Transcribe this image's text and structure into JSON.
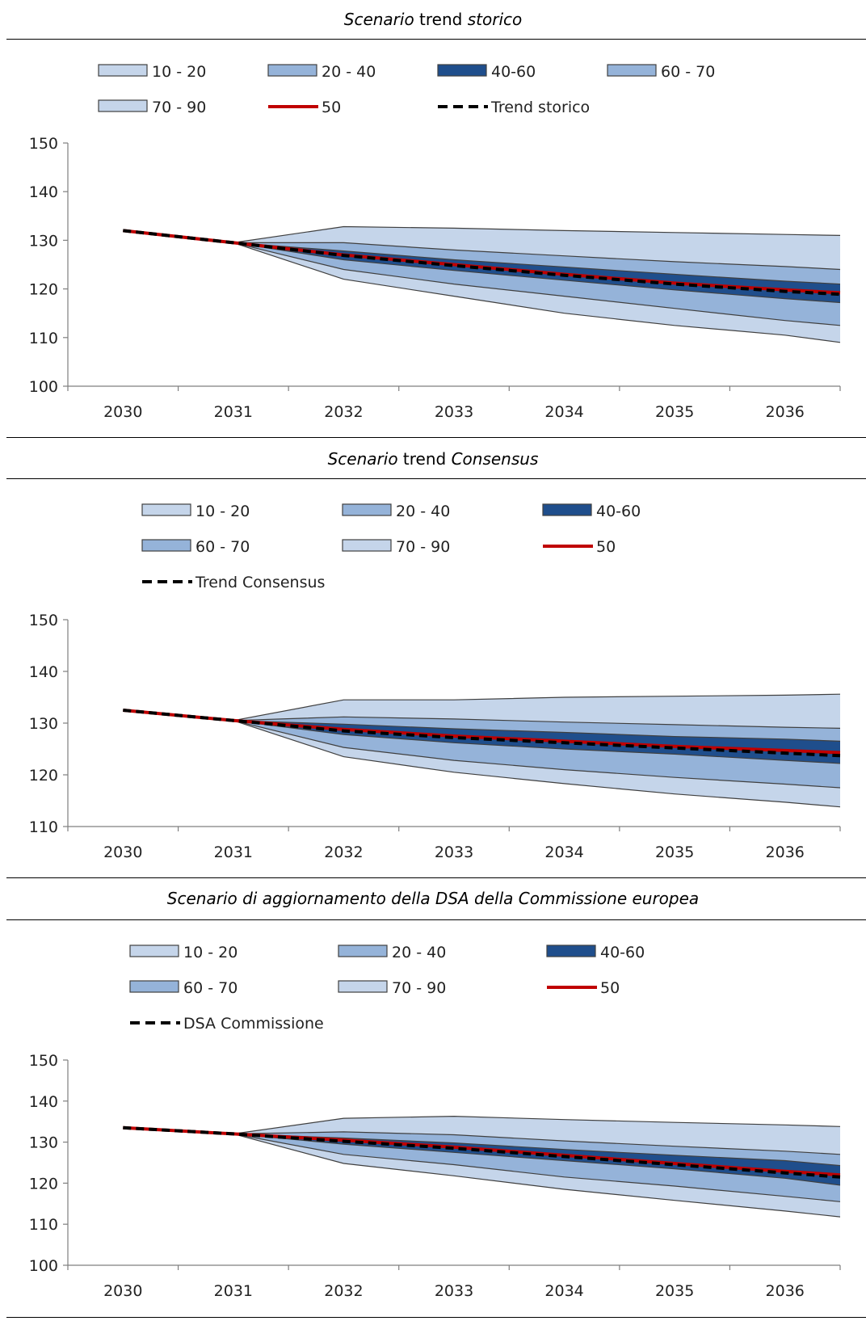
{
  "colors": {
    "outer": "#c5d5ea",
    "mid": "#95b3d9",
    "inner": "#1f4e8c",
    "median": "#c00000",
    "trend": "#000000",
    "edge": "#404040"
  },
  "chart_data": [
    {
      "type": "area",
      "title_parts": [
        {
          "text": "Scenario",
          "italic": true
        },
        {
          "text": " trend ",
          "italic": false
        },
        {
          "text": "storico",
          "italic": true
        }
      ],
      "title": "Scenario trend storico",
      "categories": [
        "2030",
        "2031",
        "2032",
        "2033",
        "2034",
        "2035",
        "2036"
      ],
      "ylim": [
        100,
        150
      ],
      "yticks": [
        100,
        110,
        120,
        130,
        140,
        150
      ],
      "legend": {
        "placement": "top",
        "entries": [
          {
            "label": "10 - 20",
            "kind": "box",
            "color": "outer"
          },
          {
            "label": "20 - 40",
            "kind": "box",
            "color": "mid"
          },
          {
            "label": "40-60",
            "kind": "box",
            "color": "inner"
          },
          {
            "label": "60 - 70",
            "kind": "box",
            "color": "mid"
          },
          {
            "label": "70 - 90",
            "kind": "box",
            "color": "outer"
          },
          {
            "label": "50",
            "kind": "line",
            "color": "median"
          },
          {
            "label": "Trend storico",
            "kind": "dash",
            "color": "trend"
          }
        ]
      },
      "fan_start_x": 2031,
      "series": [
        {
          "name": "p10",
          "x": [
            2031,
            2032,
            2033,
            2034,
            2035,
            2036,
            2036.5
          ],
          "values": [
            129.5,
            122.0,
            118.5,
            115.0,
            112.5,
            110.5,
            109.0
          ]
        },
        {
          "name": "p20",
          "x": [
            2031,
            2032,
            2033,
            2034,
            2035,
            2036,
            2036.5
          ],
          "values": [
            129.5,
            124.0,
            121.0,
            118.5,
            116.0,
            113.5,
            112.5
          ]
        },
        {
          "name": "p40",
          "x": [
            2031,
            2032,
            2033,
            2034,
            2035,
            2036,
            2036.5
          ],
          "values": [
            129.5,
            126.0,
            123.8,
            121.8,
            119.8,
            118.0,
            117.2
          ]
        },
        {
          "name": "p60",
          "x": [
            2031,
            2032,
            2033,
            2034,
            2035,
            2036,
            2036.5
          ],
          "values": [
            129.5,
            127.8,
            126.0,
            124.5,
            123.0,
            121.6,
            121.0
          ]
        },
        {
          "name": "p70",
          "x": [
            2031,
            2032,
            2033,
            2034,
            2035,
            2036,
            2036.5
          ],
          "values": [
            129.5,
            129.5,
            128.0,
            126.8,
            125.6,
            124.6,
            124.0
          ]
        },
        {
          "name": "p90",
          "x": [
            2031,
            2032,
            2033,
            2034,
            2035,
            2036,
            2036.5
          ],
          "values": [
            129.5,
            132.8,
            132.5,
            132.0,
            131.6,
            131.2,
            131.0
          ]
        },
        {
          "name": "50",
          "x": [
            2030,
            2031,
            2032,
            2033,
            2034,
            2035,
            2036,
            2036.5
          ],
          "values": [
            132.0,
            129.5,
            127.0,
            125.0,
            123.0,
            121.2,
            119.8,
            119.2
          ]
        },
        {
          "name": "Trend storico",
          "x": [
            2030,
            2031,
            2032,
            2033,
            2034,
            2035,
            2036,
            2036.5
          ],
          "values": [
            132.0,
            129.5,
            126.9,
            124.8,
            122.8,
            121.0,
            119.5,
            118.9
          ]
        }
      ]
    },
    {
      "type": "area",
      "title_parts": [
        {
          "text": "Scenario",
          "italic": true
        },
        {
          "text": " trend ",
          "italic": false
        },
        {
          "text": "Consensus",
          "italic": true
        }
      ],
      "title": "Scenario trend Consensus",
      "categories": [
        "2030",
        "2031",
        "2032",
        "2033",
        "2034",
        "2035",
        "2036"
      ],
      "ylim": [
        110,
        150
      ],
      "yticks": [
        110,
        120,
        130,
        140,
        150
      ],
      "legend": {
        "placement": "top",
        "entries": [
          {
            "label": "10 - 20",
            "kind": "box",
            "color": "outer"
          },
          {
            "label": "20 - 40",
            "kind": "box",
            "color": "mid"
          },
          {
            "label": "40-60",
            "kind": "box",
            "color": "inner"
          },
          {
            "label": "60 - 70",
            "kind": "box",
            "color": "mid"
          },
          {
            "label": "70 - 90",
            "kind": "box",
            "color": "outer"
          },
          {
            "label": "50",
            "kind": "line",
            "color": "median"
          },
          {
            "label": "Trend Consensus",
            "kind": "dash",
            "color": "trend"
          }
        ]
      },
      "fan_start_x": 2031,
      "series": [
        {
          "name": "p10",
          "x": [
            2031,
            2032,
            2033,
            2034,
            2035,
            2036,
            2036.5
          ],
          "values": [
            130.5,
            123.5,
            120.5,
            118.3,
            116.3,
            114.7,
            113.8
          ]
        },
        {
          "name": "p20",
          "x": [
            2031,
            2032,
            2033,
            2034,
            2035,
            2036,
            2036.5
          ],
          "values": [
            130.5,
            125.3,
            122.8,
            121.0,
            119.5,
            118.2,
            117.5
          ]
        },
        {
          "name": "p40",
          "x": [
            2031,
            2032,
            2033,
            2034,
            2035,
            2036,
            2036.5
          ],
          "values": [
            130.5,
            127.8,
            126.2,
            125.0,
            124.0,
            122.8,
            122.2
          ]
        },
        {
          "name": "p60",
          "x": [
            2031,
            2032,
            2033,
            2034,
            2035,
            2036,
            2036.5
          ],
          "values": [
            130.5,
            129.8,
            128.9,
            128.2,
            127.4,
            126.9,
            126.5
          ]
        },
        {
          "name": "p70",
          "x": [
            2031,
            2032,
            2033,
            2034,
            2035,
            2036,
            2036.5
          ],
          "values": [
            130.5,
            131.2,
            130.8,
            130.2,
            129.7,
            129.2,
            129.0
          ]
        },
        {
          "name": "p90",
          "x": [
            2031,
            2032,
            2033,
            2034,
            2035,
            2036,
            2036.5
          ],
          "values": [
            130.5,
            134.5,
            134.5,
            135.0,
            135.2,
            135.4,
            135.6
          ]
        },
        {
          "name": "50",
          "x": [
            2030,
            2031,
            2032,
            2033,
            2034,
            2035,
            2036,
            2036.5
          ],
          "values": [
            132.5,
            130.5,
            128.8,
            127.5,
            126.5,
            125.5,
            124.7,
            124.3
          ]
        },
        {
          "name": "Trend Consensus",
          "x": [
            2030,
            2031,
            2032,
            2033,
            2034,
            2035,
            2036,
            2036.5
          ],
          "values": [
            132.5,
            130.5,
            128.5,
            127.2,
            126.2,
            125.2,
            124.2,
            123.7
          ]
        }
      ]
    },
    {
      "type": "area",
      "title_parts": [
        {
          "text": "Scenario di aggiornamento della DSA della Commissione europea",
          "italic": true
        }
      ],
      "title": "Scenario di aggiornamento della DSA della Commissione europea",
      "categories": [
        "2030",
        "2031",
        "2032",
        "2033",
        "2034",
        "2035",
        "2036"
      ],
      "ylim": [
        100,
        150
      ],
      "yticks": [
        100,
        110,
        120,
        130,
        140,
        150
      ],
      "legend": {
        "placement": "top",
        "entries": [
          {
            "label": "10 - 20",
            "kind": "box",
            "color": "outer"
          },
          {
            "label": "20 - 40",
            "kind": "box",
            "color": "mid"
          },
          {
            "label": "40-60",
            "kind": "box",
            "color": "inner"
          },
          {
            "label": "60 - 70",
            "kind": "box",
            "color": "mid"
          },
          {
            "label": "70 - 90",
            "kind": "box",
            "color": "outer"
          },
          {
            "label": "50",
            "kind": "line",
            "color": "median"
          },
          {
            "label": "DSA Commissione",
            "kind": "dash",
            "color": "trend"
          }
        ]
      },
      "fan_start_x": 2031,
      "series": [
        {
          "name": "p10",
          "x": [
            2031,
            2032,
            2033,
            2034,
            2035,
            2036,
            2036.5
          ],
          "values": [
            132.0,
            124.8,
            121.8,
            118.5,
            115.8,
            113.2,
            111.8
          ]
        },
        {
          "name": "p20",
          "x": [
            2031,
            2032,
            2033,
            2034,
            2035,
            2036,
            2036.5
          ],
          "values": [
            132.0,
            127.0,
            124.5,
            121.5,
            119.3,
            116.8,
            115.5
          ]
        },
        {
          "name": "p40",
          "x": [
            2031,
            2032,
            2033,
            2034,
            2035,
            2036,
            2036.5
          ],
          "values": [
            132.0,
            129.5,
            127.5,
            125.5,
            123.5,
            121.2,
            119.5
          ]
        },
        {
          "name": "p60",
          "x": [
            2031,
            2032,
            2033,
            2034,
            2035,
            2036,
            2036.5
          ],
          "values": [
            132.0,
            131.0,
            129.8,
            128.2,
            126.8,
            125.5,
            124.3
          ]
        },
        {
          "name": "p70",
          "x": [
            2031,
            2032,
            2033,
            2034,
            2035,
            2036,
            2036.5
          ],
          "values": [
            132.0,
            132.5,
            131.8,
            130.3,
            129.0,
            127.8,
            127.0
          ]
        },
        {
          "name": "p90",
          "x": [
            2031,
            2032,
            2033,
            2034,
            2035,
            2036,
            2036.5
          ],
          "values": [
            132.0,
            135.8,
            136.3,
            135.5,
            134.8,
            134.2,
            133.8
          ]
        },
        {
          "name": "50",
          "x": [
            2030,
            2031,
            2032,
            2033,
            2034,
            2035,
            2036,
            2036.5
          ],
          "values": [
            133.5,
            132.0,
            130.5,
            128.8,
            126.8,
            124.8,
            122.9,
            122.0
          ]
        },
        {
          "name": "DSA Commissione",
          "x": [
            2030,
            2031,
            2032,
            2033,
            2034,
            2035,
            2036,
            2036.5
          ],
          "values": [
            133.5,
            132.0,
            130.2,
            128.5,
            126.5,
            124.5,
            122.5,
            121.5
          ]
        }
      ]
    }
  ]
}
